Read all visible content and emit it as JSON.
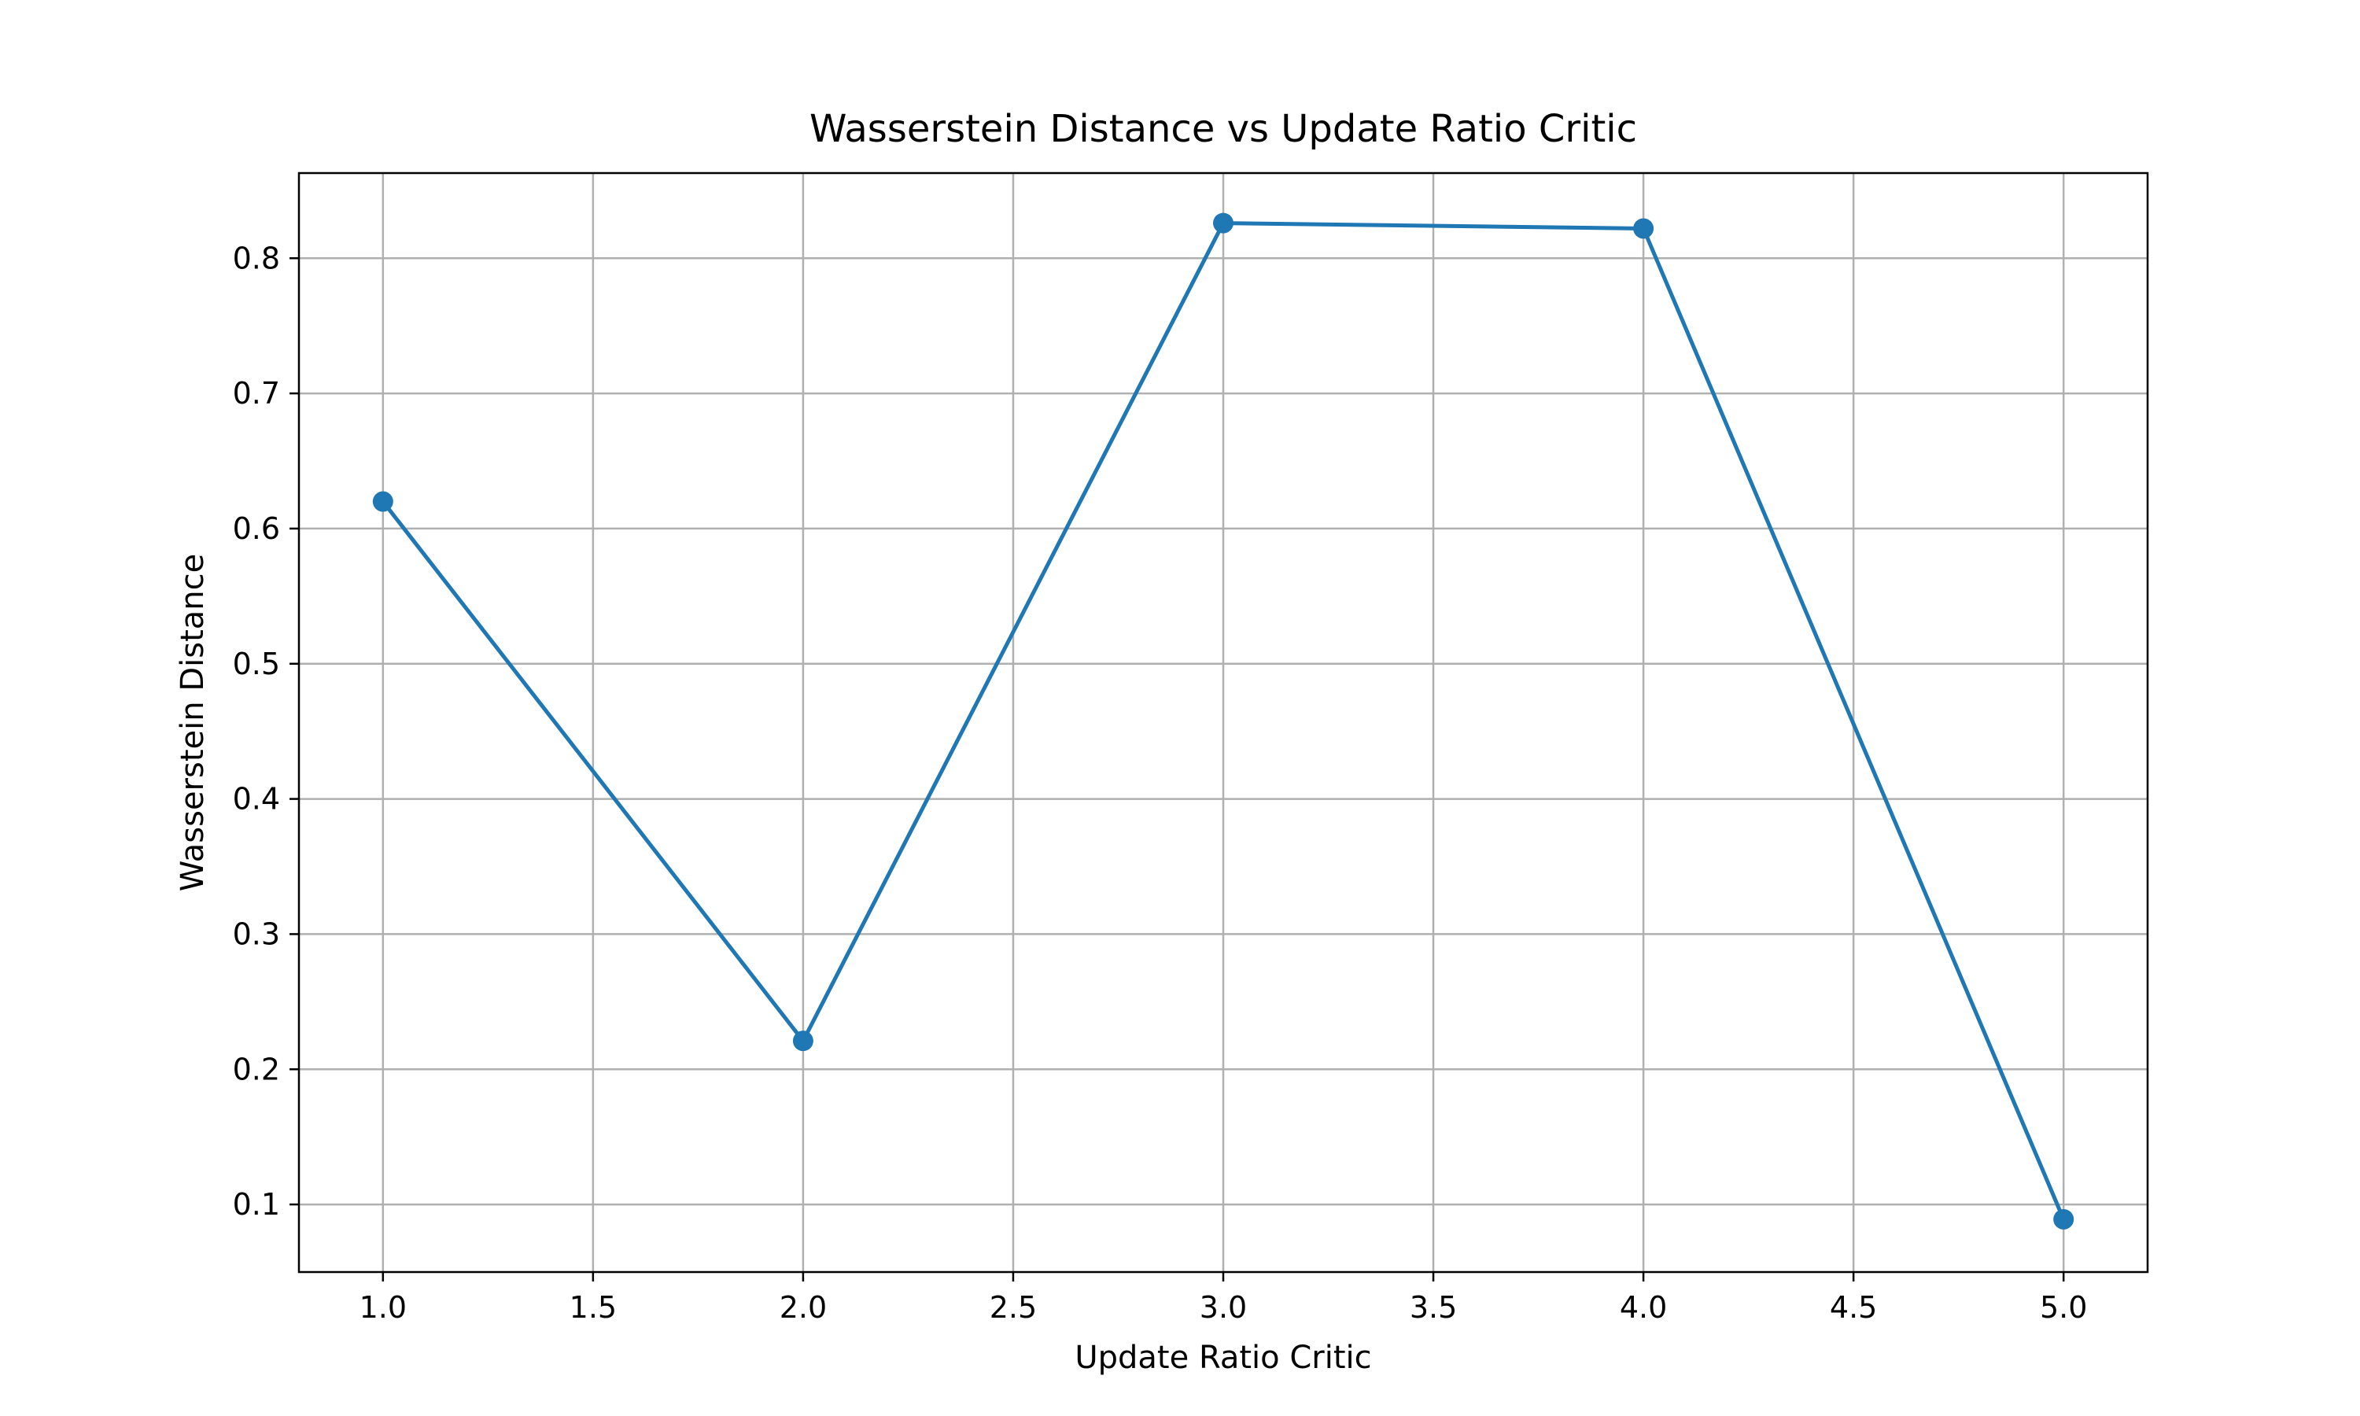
{
  "chart_data": {
    "type": "line",
    "title": "Wasserstein Distance vs Update Ratio Critic",
    "xlabel": "Update Ratio Critic",
    "ylabel": "Wasserstein Distance",
    "x": [
      1,
      2,
      3,
      4,
      5
    ],
    "series": [
      {
        "values": [
          0.62,
          0.221,
          0.826,
          0.822,
          0.089
        ]
      }
    ],
    "xlim": [
      0.8,
      5.2
    ],
    "ylim": [
      0.05,
      0.863
    ],
    "xticks": [
      "1.0",
      "1.5",
      "2.0",
      "2.5",
      "3.0",
      "3.5",
      "4.0",
      "4.5",
      "5.0"
    ],
    "yticks": [
      "0.1",
      "0.2",
      "0.3",
      "0.4",
      "0.5",
      "0.6",
      "0.7",
      "0.8"
    ],
    "grid": true,
    "legend": "none",
    "colors": {
      "line": "#1f77b4",
      "grid": "#b0b0b0",
      "axes": "#000000"
    }
  }
}
